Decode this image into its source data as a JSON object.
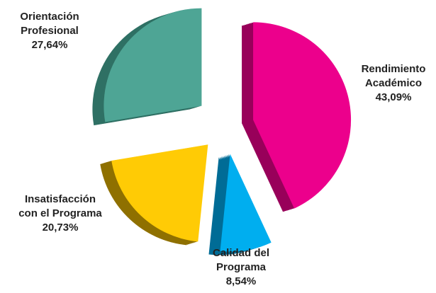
{
  "chart_data": {
    "type": "pie",
    "categories": [
      [
        "Rendimiento",
        "Académico"
      ],
      [
        "Calidad del",
        "Programa"
      ],
      [
        "Insatisfacción",
        "con el Programa"
      ],
      [
        "Orientación",
        "Profesional"
      ]
    ],
    "values": [
      43.09,
      8.54,
      20.73,
      27.64
    ],
    "value_labels": [
      "43,09%",
      "8,54%",
      "20,73%",
      "27,64%"
    ],
    "colors": [
      "#ec008c",
      "#00aeef",
      "#ffcb05",
      "#4ea595"
    ],
    "depth_colors": [
      "#98005a",
      "#006c96",
      "#8f7000",
      "#2f7064"
    ]
  }
}
